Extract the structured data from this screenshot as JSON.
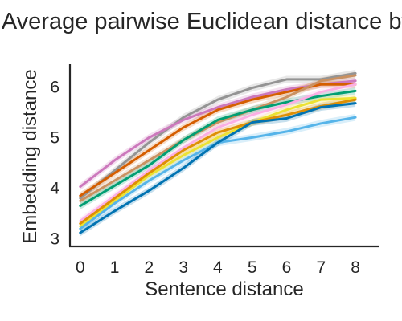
{
  "chart_data": {
    "type": "line",
    "title": "Average pairwise Euclidean distance by g",
    "xlabel": "Sentence distance",
    "ylabel": "Embedding distance",
    "x": [
      0,
      1,
      2,
      3,
      4,
      5,
      6,
      7,
      8
    ],
    "xlim": [
      -0.3,
      8.7
    ],
    "ylim": [
      2.85,
      6.45
    ],
    "xticks": [
      "0",
      "1",
      "2",
      "3",
      "4",
      "5",
      "6",
      "7",
      "8"
    ],
    "yticks": [
      "3",
      "4",
      "5",
      "6"
    ],
    "legend": "none",
    "grid": false,
    "series": [
      {
        "color": "#949494",
        "values": [
          3.8,
          4.35,
          4.9,
          5.4,
          5.75,
          5.98,
          6.15,
          6.15,
          6.27
        ]
      },
      {
        "color": "#cc78bc",
        "values": [
          4.03,
          4.55,
          5.0,
          5.35,
          5.6,
          5.8,
          5.95,
          6.05,
          6.12
        ]
      },
      {
        "color": "#d55e00",
        "values": [
          3.85,
          4.3,
          4.75,
          5.2,
          5.55,
          5.75,
          5.9,
          6.05,
          6.05
        ]
      },
      {
        "color": "#ca9161",
        "values": [
          3.75,
          4.15,
          4.55,
          4.95,
          5.3,
          5.55,
          5.8,
          6.12,
          6.23
        ]
      },
      {
        "color": "#029e73",
        "values": [
          3.65,
          4.05,
          4.45,
          4.95,
          5.35,
          5.55,
          5.7,
          5.82,
          5.92
        ]
      },
      {
        "color": "#fbafe4",
        "values": [
          3.35,
          3.85,
          4.35,
          4.8,
          5.2,
          5.45,
          5.65,
          5.9,
          6.05
        ]
      },
      {
        "color": "#ece133",
        "values": [
          3.25,
          3.75,
          4.25,
          4.65,
          5.0,
          5.3,
          5.55,
          5.75,
          5.78
        ]
      },
      {
        "color": "#de8f05",
        "values": [
          3.3,
          3.8,
          4.3,
          4.75,
          5.1,
          5.3,
          5.45,
          5.62,
          5.75
        ]
      },
      {
        "color": "#56b4e9",
        "values": [
          3.2,
          3.7,
          4.15,
          4.55,
          4.9,
          5.0,
          5.12,
          5.28,
          5.4
        ]
      },
      {
        "color": "#0173b2",
        "values": [
          3.12,
          3.55,
          3.95,
          4.4,
          4.9,
          5.3,
          5.38,
          5.6,
          5.68
        ]
      }
    ]
  }
}
